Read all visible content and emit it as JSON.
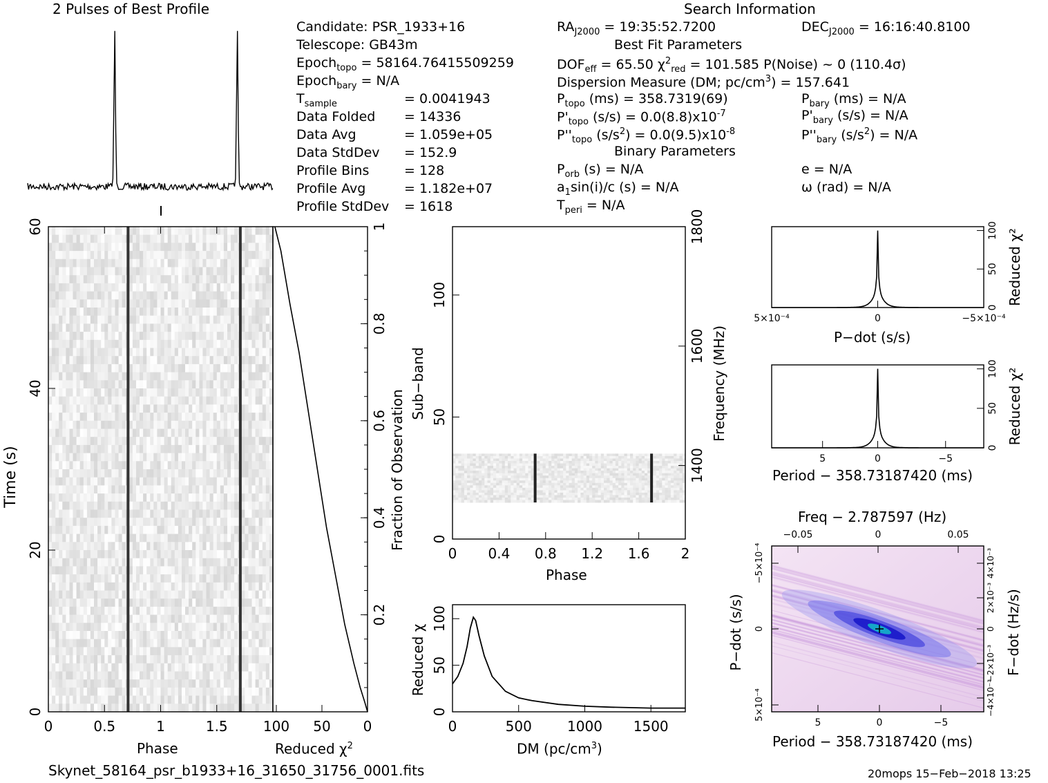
{
  "title": "2 Pulses of Best Profile",
  "search_info": {
    "header": "Search Information",
    "candidate": "Candidate:   PSR_1933+16",
    "telescope": "Telescope:   GB43m",
    "epoch_topo": "Epoch",
    "epoch_topo_sub": "topo",
    "epoch_topo_val": " = 58164.76415509259",
    "epoch_bary": "Epoch",
    "epoch_bary_sub": "bary",
    "epoch_bary_val": " = N/A",
    "stats": [
      {
        "label": "T",
        "sub": "sample",
        "value": "=   0.0041943"
      },
      {
        "label": "Data Folded",
        "sub": "",
        "value": "=   14336"
      },
      {
        "label": "Data Avg",
        "sub": "",
        "value": "=   1.059e+05"
      },
      {
        "label": "Data StdDev",
        "sub": "",
        "value": "=   152.9"
      },
      {
        "label": "Profile Bins",
        "sub": "",
        "value": "=   128"
      },
      {
        "label": "Profile Avg",
        "sub": "",
        "value": "=   1.182e+07"
      },
      {
        "label": "Profile StdDev",
        "sub": "",
        "value": "=   1618"
      }
    ],
    "ra": "RA",
    "ra_sub": "J2000",
    "ra_val": " = 19:35:52.7200",
    "dec": "DEC",
    "dec_sub": "J2000",
    "dec_val": " = 16:16:40.8100",
    "best_fit_header": "Best Fit Parameters",
    "dof": "DOF",
    "dof_sub": "eff",
    "dof_val": " = 65.50  ",
    "chi": "χ",
    "chi_sup": "2",
    "chi_sub": "red",
    "chi_val": " = 101.585  P(Noise) ~ 0   (110.4σ)",
    "dm_line": "Dispersion Measure (DM; pc/cm",
    "dm_sup": "3",
    "dm_val": ") = 157.641",
    "ptopo": "P",
    "ptopo_sub": "topo",
    "ptopo_val": " (ms) =  358.7319(69)",
    "pbary": "P",
    "pbary_sub": "bary",
    "pbary_val": " (ms) = N/A",
    "pdtopo": "P'",
    "pdtopo_sub": "topo",
    "pdtopo_val": " (s/s) = 0.0(8.8)x10",
    "pdtopo_sup": "-7",
    "pdbary": "P'",
    "pdbary_sub": "bary",
    "pdbary_val": " (s/s) = N/A",
    "pddtopo": "P''",
    "pddtopo_sub": "topo",
    "pddtopo_val": " (s/s",
    "pddtopo_sup1": "2",
    "pddtopo_val2": ") = 0.0(9.5)x10",
    "pddtopo_sup2": "-8",
    "pddbary": "P''",
    "pddbary_sub": "bary",
    "pddbary_val": " (s/s",
    "pddbary_sup": "2",
    "pddbary_val2": ") = N/A",
    "binary_header": "Binary Parameters",
    "porb": "P",
    "porb_sub": "orb",
    "porb_val": " (s) = N/A",
    "e_val": "e = N/A",
    "a1": "a",
    "a1_sub": "1",
    "a1_val": "sin(i)/c (s) = N/A",
    "omega_val": "ω (rad) = N/A",
    "tperi": "T",
    "tperi_sub": "peri",
    "tperi_val": " = N/A"
  },
  "footer": {
    "filename": "Skynet_58164_psr_b1933+16_31650_31756_0001.fits",
    "stamp": "20mops 15−Feb−2018 13:25"
  },
  "axes": {
    "time_label": "Time (s)",
    "phase_label": "Phase",
    "reduced_chi_label": "Reduced χ",
    "chi_sup": "2",
    "fraction_label": "Fraction of Observation",
    "subband_label": "Sub−band",
    "frequency_label": "Frequency (MHz)",
    "dm_label": "DM (pc/cm",
    "dm_sup": "3",
    "dm_close": ")",
    "pdot_label": "P−dot (s/s)",
    "period_label": "Period − 358.73187420 (ms)",
    "freq_label": "Freq − 2.787597 (Hz)",
    "pdot2_label": "P−dot (s/s)",
    "fdot_label": "F−dot (Hz/s)"
  },
  "chart_data": [
    {
      "type": "line",
      "title": "2 Pulses of Best Profile",
      "x": "phase 0-2",
      "peaks_phase": [
        0.71,
        1.71
      ]
    },
    {
      "type": "heatmap",
      "name": "time-phase",
      "xlabel": "Phase",
      "ylabel": "Time (s)",
      "xlim": [
        0,
        2
      ],
      "ylim": [
        0,
        60
      ],
      "xticks": [
        "0",
        "0.5",
        "1",
        "1.5"
      ],
      "yticks": [
        "0",
        "20",
        "40",
        "60"
      ],
      "pulse_phase": [
        0.71,
        1.71
      ]
    },
    {
      "type": "line",
      "name": "reduced-chi-vs-fraction",
      "xlabel": "Reduced χ2",
      "ylabel": "Fraction of Observation",
      "xlim": [
        100,
        0
      ],
      "ylim": [
        0,
        1
      ],
      "xticks": [
        "100",
        "50",
        "0"
      ],
      "yticks": [
        "0.2",
        "0.4",
        "0.6",
        "0.8",
        "1"
      ],
      "points": [
        [
          0,
          0
        ],
        [
          3,
          0.02
        ],
        [
          8,
          0.05
        ],
        [
          15,
          0.1
        ],
        [
          25,
          0.18
        ],
        [
          35,
          0.28
        ],
        [
          45,
          0.38
        ],
        [
          55,
          0.5
        ],
        [
          65,
          0.62
        ],
        [
          75,
          0.74
        ],
        [
          85,
          0.84
        ],
        [
          95,
          0.95
        ],
        [
          101.585,
          1
        ]
      ]
    },
    {
      "type": "heatmap",
      "name": "subband-phase",
      "xlabel": "Phase",
      "ylabel": "Sub−band",
      "xlim": [
        0,
        2
      ],
      "ylim": [
        0,
        128
      ],
      "xticks": [
        "0",
        "0.4",
        "0.8",
        "1.2",
        "1.6",
        "2"
      ],
      "yticks": [
        "0",
        "50",
        "100"
      ],
      "freq_ticks": [
        "1400",
        "1600",
        "1800"
      ],
      "data_band": [
        15,
        35
      ],
      "pulse_phase": [
        0.71,
        1.71
      ]
    },
    {
      "type": "line",
      "name": "dm-curve",
      "xlabel": "DM (pc/cm3)",
      "ylabel": "Reduced χ2",
      "xlim": [
        0,
        1760
      ],
      "ylim": [
        0,
        115
      ],
      "xticks": [
        "0",
        "500",
        "1000",
        "1500"
      ],
      "yticks": [
        "0",
        "50",
        "100"
      ],
      "points": [
        [
          0,
          30
        ],
        [
          40,
          38
        ],
        [
          80,
          52
        ],
        [
          110,
          70
        ],
        [
          135,
          90
        ],
        [
          157.6,
          101.6
        ],
        [
          175,
          98
        ],
        [
          200,
          82
        ],
        [
          240,
          60
        ],
        [
          300,
          38
        ],
        [
          400,
          22
        ],
        [
          500,
          15
        ],
        [
          600,
          12
        ],
        [
          800,
          8
        ],
        [
          1000,
          6
        ],
        [
          1200,
          5
        ],
        [
          1500,
          4
        ],
        [
          1760,
          4
        ]
      ]
    },
    {
      "type": "line",
      "name": "pdot-curve",
      "xlabel": "P−dot (s/s)",
      "ylabel": "Reduced χ2",
      "xlim": [
        0.0005,
        -0.0005
      ],
      "ylim": [
        0,
        105
      ],
      "xticks": [
        "5×10⁻⁴",
        "0",
        "−5×10⁻⁴"
      ],
      "yticks": [
        "0",
        "50",
        "100"
      ]
    },
    {
      "type": "line",
      "name": "period-curve",
      "xlabel": "Period − 358.73187420 (ms)",
      "ylabel": "Reduced χ2",
      "xlim": [
        8.5,
        -8.5
      ],
      "ylim": [
        0,
        105
      ],
      "xticks": [
        "5",
        "0",
        "−5"
      ],
      "yticks": [
        "0",
        "50",
        "100"
      ]
    },
    {
      "type": "heatmap",
      "name": "period-pdot",
      "xlabel": "Period − 358.73187420 (ms)",
      "ylabel": "P−dot (s/s)",
      "x2label": "Freq − 2.787597 (Hz)",
      "y2label": "F−dot (Hz/s)",
      "xticks": [
        "5",
        "0",
        "−5"
      ],
      "x2ticks": [
        "−0.05",
        "0",
        "0.05"
      ],
      "yticks": [
        "5×10⁻⁴",
        "0",
        "−5×10⁻⁴"
      ],
      "y2ticks": [
        "−4×10⁻³",
        "−2×10⁻³",
        "0",
        "2×10⁻³",
        "4×10⁻³"
      ]
    }
  ],
  "colors": {
    "ink": "#000000",
    "heat_blue": "#1010c0",
    "heat_pink": "#f0d8f0"
  }
}
